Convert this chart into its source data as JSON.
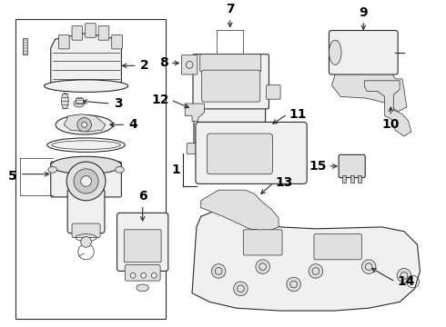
{
  "bg_color": "#ffffff",
  "line_color": "#2a2a2a",
  "label_color": "#000000",
  "fig_width": 4.9,
  "fig_height": 3.6,
  "dpi": 100,
  "label_fontsize": 10,
  "label_fontweight": "bold"
}
